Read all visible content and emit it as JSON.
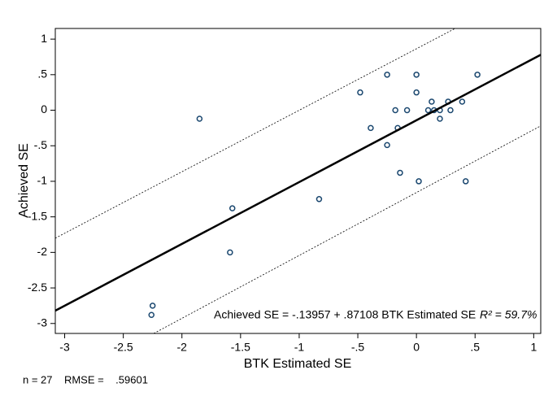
{
  "chart_data": {
    "type": "scatter",
    "xlabel": "BTK Estimated SE",
    "ylabel": "Achieved SE",
    "xlim": [
      -3.08,
      1.06
    ],
    "ylim": [
      -3.14,
      1.15
    ],
    "xticks": [
      -3,
      -2.5,
      -2,
      -1.5,
      -1,
      {
        "value": -0.5,
        "label": "-.5"
      },
      0,
      {
        "value": 0.5,
        "label": ".5"
      },
      1
    ],
    "yticks": [
      -3,
      -2.5,
      -2,
      -1.5,
      -1,
      {
        "value": -0.5,
        "label": "-.5"
      },
      0,
      {
        "value": 0.5,
        "label": ".5"
      },
      1
    ],
    "grid": false,
    "series": [
      {
        "type": "scatter",
        "color": "#1a476f",
        "x": [
          -1.85,
          -2.25,
          -2.26,
          -1.57,
          -1.59,
          -0.83,
          -0.48,
          -0.39,
          -0.25,
          -0.25,
          -0.18,
          -0.16,
          -0.14,
          -0.08,
          0.0,
          0.0,
          0.02,
          0.1,
          0.13,
          0.15,
          0.2,
          0.2,
          0.27,
          0.29,
          0.39,
          0.42,
          0.52
        ],
        "values": [
          -0.12,
          -2.75,
          -2.88,
          -1.38,
          -2.0,
          -1.25,
          0.25,
          -0.25,
          0.5,
          -0.49,
          0.0,
          -0.25,
          -0.88,
          0.0,
          0.5,
          0.25,
          -1.0,
          0.0,
          0.12,
          0.0,
          0.0,
          -0.12,
          0.12,
          0.0,
          0.12,
          -1.0,
          0.5
        ]
      },
      {
        "type": "line",
        "color": "#000000",
        "dashed": false,
        "x": [
          -3.08,
          1.06
        ],
        "values": [
          -2.82,
          0.78
        ]
      },
      {
        "type": "line",
        "color": "#000000",
        "dashed": true,
        "x": [
          -3.08,
          0.33
        ],
        "values": [
          -1.8,
          1.15
        ]
      },
      {
        "type": "line",
        "color": "#000000",
        "dashed": true,
        "x": [
          -2.24,
          1.06
        ],
        "values": [
          -3.14,
          -0.22
        ]
      }
    ],
    "annotations": [
      "Achieved SE = -.13957 + .87108 BTK Estimated SE",
      "R² = 59.7%"
    ],
    "note": "n = 27    RMSE =    .59601"
  }
}
